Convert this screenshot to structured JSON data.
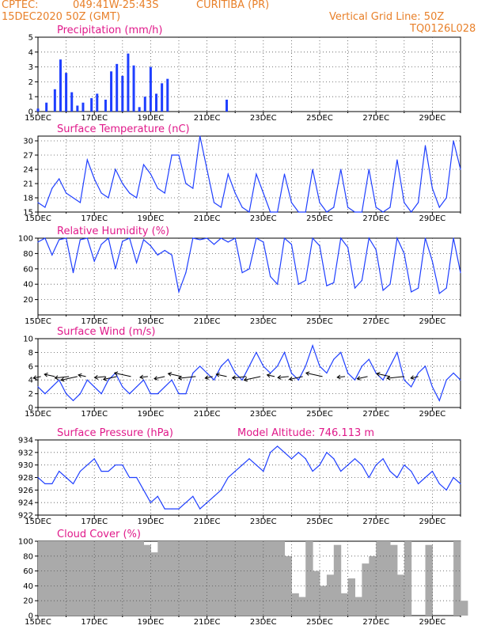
{
  "header": {
    "source": "CPTEC:",
    "coords": "049:41W-25:43S",
    "location": "CURITIBA (PR)",
    "datetime": "15DEC2020 50Z (GMT)",
    "grid_note": "Vertical Grid Line: 50Z",
    "model": "TQ0126L028"
  },
  "colors": {
    "line": "#1f3fff",
    "header": "#e8802a",
    "title": "#e0198a",
    "cloud": "#aaaaaa"
  },
  "x_labels": [
    "15DEC",
    "17DEC",
    "19DEC",
    "21DEC",
    "23DEC",
    "25DEC",
    "27DEC",
    "29DEC"
  ],
  "chart_data": [
    {
      "type": "bar",
      "title": "Precipitation (mm/h)",
      "ylim": [
        0,
        5
      ],
      "yticks": [
        "0",
        "1",
        "2",
        "3",
        "4",
        "5"
      ],
      "grid": true,
      "x": [
        "15DEC",
        "15.3",
        "15.6",
        "15.8",
        "16.0",
        "16.2",
        "16.4",
        "16.6",
        "16.9",
        "17.1",
        "17.4",
        "17.6",
        "17.8",
        "18.0",
        "18.2",
        "18.4",
        "18.6",
        "18.8",
        "19.0",
        "19.2",
        "19.4",
        "19.6",
        "21.7"
      ],
      "values": [
        0.2,
        0.6,
        1.5,
        3.5,
        2.6,
        1.3,
        0.4,
        0.6,
        0.9,
        1.2,
        0.8,
        2.7,
        3.2,
        2.4,
        3.9,
        3.1,
        0.3,
        1.0,
        3.0,
        1.2,
        1.9,
        2.2,
        0.8
      ]
    },
    {
      "type": "line",
      "title": "Surface Temperature (nC)",
      "ylim": [
        15,
        31
      ],
      "yticks": [
        "15",
        "18",
        "21",
        "24",
        "27",
        "30"
      ],
      "grid": true,
      "x_start": "15DEC",
      "x_step_hours": 6,
      "values": [
        17,
        16,
        20,
        22,
        19,
        18,
        17,
        26,
        22,
        19,
        18,
        24,
        21,
        19,
        18,
        25,
        23,
        20,
        19,
        27,
        27,
        21,
        20,
        31,
        24,
        17,
        16,
        23,
        19,
        16,
        15,
        23,
        19,
        15,
        15,
        23,
        17,
        15,
        15,
        24,
        17,
        15,
        16,
        24,
        16,
        15,
        15,
        24,
        16,
        15,
        16,
        26,
        17,
        15,
        17,
        29,
        20,
        16,
        18,
        30,
        24
      ]
    },
    {
      "type": "line",
      "title": "Relative Humidity (%)",
      "ylim": [
        0,
        100
      ],
      "yticks": [
        "20",
        "40",
        "60",
        "80",
        "100"
      ],
      "grid": true,
      "x_start": "15DEC",
      "x_step_hours": 6,
      "values": [
        95,
        100,
        78,
        98,
        100,
        55,
        98,
        100,
        70,
        92,
        100,
        60,
        96,
        100,
        68,
        98,
        90,
        78,
        84,
        78,
        30,
        55,
        100,
        98,
        100,
        92,
        100,
        95,
        100,
        55,
        60,
        100,
        95,
        50,
        40,
        100,
        92,
        40,
        45,
        100,
        90,
        38,
        42,
        100,
        88,
        35,
        45,
        100,
        85,
        32,
        40,
        100,
        80,
        30,
        35,
        100,
        70,
        28,
        35,
        100,
        55
      ]
    },
    {
      "type": "line",
      "title": "Surface Wind (m/s)",
      "ylim": [
        0,
        10
      ],
      "yticks": [
        "0",
        "2",
        "4",
        "6",
        "8",
        "10"
      ],
      "grid": true,
      "x_start": "15DEC",
      "x_step_hours": 6,
      "values": [
        3,
        2,
        3,
        4,
        2,
        1,
        2,
        4,
        3,
        2,
        4,
        5,
        3,
        2,
        3,
        4,
        2,
        2,
        3,
        4,
        2,
        2,
        5,
        6,
        5,
        4,
        6,
        7,
        5,
        4,
        6,
        8,
        6,
        5,
        6,
        8,
        5,
        4,
        6,
        9,
        6,
        5,
        7,
        8,
        5,
        4,
        6,
        7,
        5,
        4,
        6,
        8,
        4,
        3,
        5,
        6,
        3,
        1,
        4,
        5,
        4
      ],
      "wind_arrow_x": [
        "15.1",
        "15.6",
        "16.1",
        "16.4",
        "16.7",
        "17.4",
        "17.8",
        "18.3",
        "18.9",
        "19.5",
        "20.1",
        "20.6",
        "21.2",
        "21.7",
        "22.4",
        "22.9",
        "23.4",
        "23.9",
        "24.4",
        "25.1",
        "25.9",
        "26.7",
        "27.5",
        "28.0",
        "28.5"
      ]
    },
    {
      "type": "line",
      "title": "Surface Pressure (hPa)",
      "annotation": "Model Altitude: 746.113 m",
      "ylim": [
        922,
        934
      ],
      "yticks": [
        "922",
        "924",
        "926",
        "928",
        "930",
        "932",
        "934"
      ],
      "grid": true,
      "x_start": "15DEC",
      "x_step_hours": 6,
      "values": [
        928,
        927,
        927,
        929,
        928,
        927,
        929,
        930,
        931,
        929,
        929,
        930,
        930,
        928,
        928,
        926,
        924,
        925,
        923,
        923,
        923,
        924,
        925,
        923,
        924,
        925,
        926,
        928,
        929,
        930,
        931,
        930,
        929,
        932,
        933,
        932,
        931,
        932,
        931,
        929,
        930,
        932,
        931,
        929,
        930,
        931,
        930,
        928,
        930,
        931,
        929,
        928,
        930,
        929,
        927,
        928,
        929,
        927,
        926,
        928,
        927
      ]
    },
    {
      "type": "bar",
      "title": "Cloud Cover (%)",
      "ylim": [
        0,
        100
      ],
      "yticks": [
        "0",
        "20",
        "40",
        "60",
        "80",
        "100"
      ],
      "grid": true,
      "x_start": "15DEC",
      "x_step_hours": 6,
      "values": [
        100,
        100,
        100,
        100,
        100,
        100,
        100,
        100,
        100,
        100,
        100,
        100,
        100,
        100,
        100,
        95,
        85,
        100,
        100,
        100,
        100,
        100,
        100,
        100,
        100,
        100,
        100,
        100,
        100,
        100,
        100,
        100,
        100,
        100,
        100,
        80,
        30,
        25,
        100,
        60,
        40,
        55,
        95,
        30,
        50,
        25,
        70,
        80,
        100,
        100,
        95,
        55,
        100,
        0,
        0,
        95,
        0,
        0,
        0,
        100,
        20
      ]
    }
  ]
}
